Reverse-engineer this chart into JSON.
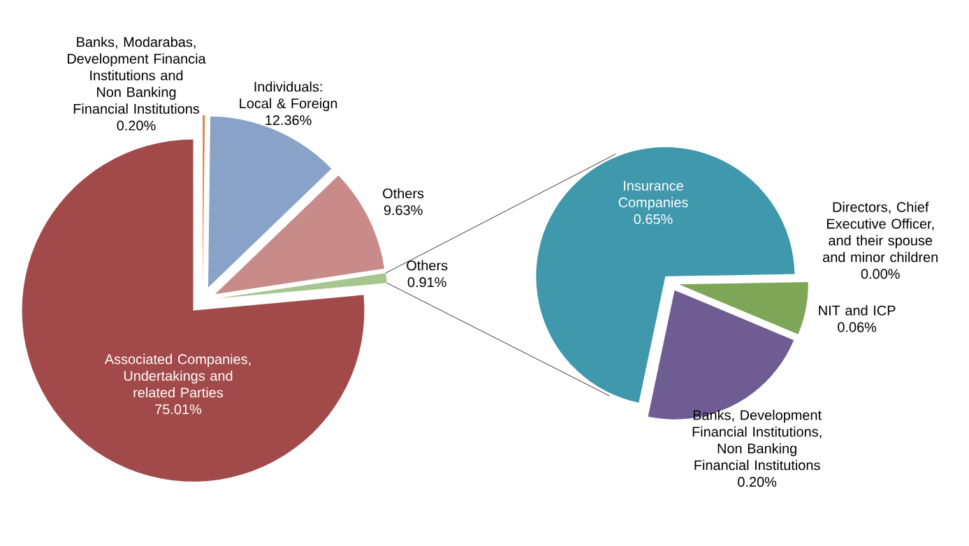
{
  "chart_data": [
    {
      "type": "pie",
      "categories": [
        "Banks, Modarabas, Development Financia Institutions and Non Banking Financial Institutions",
        "Individuals: Local & Foreign",
        "Others",
        "Others",
        "Associated Companies, Undertakings and related Parties"
      ],
      "values": [
        0.2,
        12.36,
        9.63,
        0.91,
        75.01
      ],
      "colors": [
        "#d98741",
        "#89a3c8",
        "#c98b8a",
        "#a7c58e",
        "#a24a49"
      ],
      "value_labels": [
        "0.20%",
        "12.36%",
        "9.63%",
        "0.91%",
        "75.01%"
      ]
    },
    {
      "type": "pie",
      "categories": [
        "Directors, Chief Executive Officer, and their spouse and minor children",
        "NIT and ICP",
        "Banks, Development Financial Institutions, Non Banking Financial Institutions",
        "Insurance Companies"
      ],
      "values": [
        0.0,
        0.06,
        0.2,
        0.65
      ],
      "colors": [
        "#2e5d8c",
        "#7ea657",
        "#6e5c93",
        "#3f98ab"
      ],
      "value_labels": [
        "0.00%",
        "0.06%",
        "0.20%",
        "0.65%"
      ]
    }
  ]
}
